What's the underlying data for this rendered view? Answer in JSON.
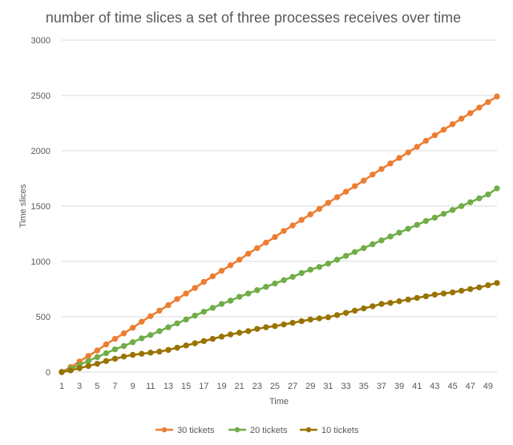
{
  "chart_data": {
    "type": "line",
    "title": "number of time slices a set of three processes receives over time",
    "xlabel": "Time",
    "ylabel": "Time slices",
    "ylim": [
      0,
      3000
    ],
    "yticks": [
      0,
      500,
      1000,
      1500,
      2000,
      2500,
      3000
    ],
    "xlim": [
      1,
      50
    ],
    "xtick_labels": [
      "1",
      "3",
      "5",
      "7",
      "9",
      "11",
      "13",
      "15",
      "17",
      "19",
      "21",
      "23",
      "25",
      "27",
      "29",
      "31",
      "33",
      "35",
      "37",
      "39",
      "41",
      "43",
      "45",
      "47",
      "49"
    ],
    "grid": true,
    "legend_position": "bottom",
    "x": [
      1,
      2,
      3,
      4,
      5,
      6,
      7,
      8,
      9,
      10,
      11,
      12,
      13,
      14,
      15,
      16,
      17,
      18,
      19,
      20,
      21,
      22,
      23,
      24,
      25,
      26,
      27,
      28,
      29,
      30,
      31,
      32,
      33,
      34,
      35,
      36,
      37,
      38,
      39,
      40,
      41,
      42,
      43,
      44,
      45,
      46,
      47,
      48,
      49,
      50
    ],
    "series": [
      {
        "name": "30 tickets",
        "color": "#ED7D31",
        "values": [
          0,
          45,
          95,
          145,
          195,
          250,
          300,
          350,
          400,
          455,
          505,
          555,
          605,
          660,
          710,
          760,
          815,
          865,
          915,
          965,
          1015,
          1070,
          1120,
          1170,
          1220,
          1275,
          1325,
          1375,
          1425,
          1475,
          1530,
          1580,
          1630,
          1680,
          1730,
          1785,
          1835,
          1885,
          1935,
          1985,
          2035,
          2090,
          2140,
          2190,
          2240,
          2290,
          2340,
          2390,
          2440,
          2490
        ]
      },
      {
        "name": "20 tickets",
        "color": "#70AD47",
        "values": [
          0,
          30,
          65,
          100,
          135,
          170,
          205,
          235,
          270,
          305,
          335,
          370,
          405,
          440,
          475,
          510,
          545,
          580,
          615,
          645,
          680,
          710,
          740,
          770,
          800,
          830,
          860,
          895,
          925,
          950,
          980,
          1015,
          1050,
          1085,
          1120,
          1155,
          1190,
          1225,
          1260,
          1295,
          1330,
          1365,
          1395,
          1430,
          1465,
          1500,
          1535,
          1570,
          1605,
          1660
        ]
      },
      {
        "name": "10 tickets",
        "color": "#997300",
        "values": [
          0,
          15,
          35,
          55,
          75,
          100,
          120,
          140,
          155,
          165,
          175,
          185,
          200,
          220,
          240,
          260,
          280,
          300,
          320,
          340,
          355,
          370,
          390,
          405,
          415,
          430,
          445,
          460,
          475,
          485,
          495,
          515,
          535,
          555,
          575,
          595,
          615,
          625,
          640,
          655,
          670,
          685,
          700,
          710,
          720,
          735,
          750,
          765,
          785,
          805
        ]
      }
    ]
  }
}
